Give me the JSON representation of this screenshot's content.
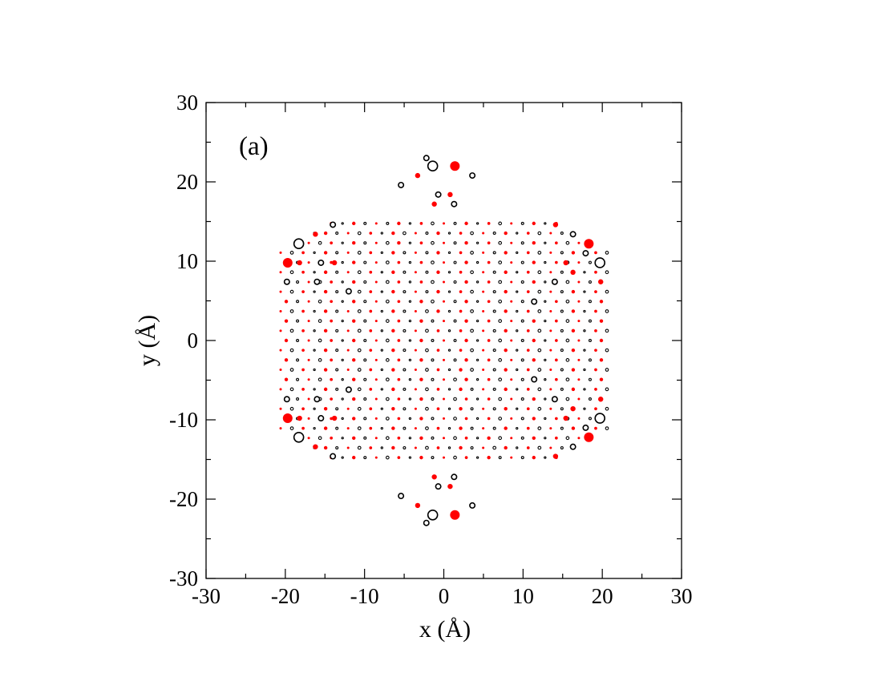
{
  "chart_data": {
    "type": "scatter",
    "panel_label": "(a)",
    "xlabel": "x (Å)",
    "ylabel": "y (Å)",
    "xlim": [
      -30,
      30
    ],
    "ylim": [
      -30,
      30
    ],
    "xticks": [
      -30,
      -20,
      -10,
      0,
      10,
      20,
      30
    ],
    "yticks": [
      -30,
      -20,
      -10,
      0,
      10,
      20,
      30
    ],
    "minor_tick_step": 5,
    "grid": false,
    "lattice": {
      "spacing_x": 1.42,
      "spacing_y": 2.46,
      "hexagon_flat_top_y": 23.3,
      "hexagon_side_x": 21.0,
      "hexagon_corner_y": 11.6
    },
    "series": [
      {
        "marker": "filled",
        "color": "#ff0000",
        "large_points": [
          {
            "x": 1.4,
            "y": 22.0
          },
          {
            "x": 1.4,
            "y": -22.0
          },
          {
            "x": 18.3,
            "y": 12.2
          },
          {
            "x": 18.3,
            "y": -12.2
          },
          {
            "x": -19.7,
            "y": 9.8
          },
          {
            "x": -19.7,
            "y": -9.8
          }
        ],
        "medium_points": [
          {
            "x": 0.8,
            "y": 18.4
          },
          {
            "x": 0.8,
            "y": -18.4
          },
          {
            "x": -3.3,
            "y": 20.8
          },
          {
            "x": -3.3,
            "y": -20.8
          },
          {
            "x": 15.4,
            "y": 9.8
          },
          {
            "x": 15.4,
            "y": -9.8
          },
          {
            "x": 16.3,
            "y": 8.6
          },
          {
            "x": 16.3,
            "y": -8.6
          },
          {
            "x": -16.2,
            "y": 13.4
          },
          {
            "x": -16.2,
            "y": -13.4
          },
          {
            "x": -13.8,
            "y": 9.8
          },
          {
            "x": -13.8,
            "y": -9.8
          },
          {
            "x": -18.2,
            "y": 9.8
          },
          {
            "x": -18.2,
            "y": -9.8
          },
          {
            "x": 19.8,
            "y": 7.4
          },
          {
            "x": 19.8,
            "y": -7.4
          },
          {
            "x": -1.2,
            "y": 17.2
          },
          {
            "x": -1.2,
            "y": -17.2
          },
          {
            "x": 14.1,
            "y": 14.6
          },
          {
            "x": 14.1,
            "y": -14.6
          }
        ]
      },
      {
        "marker": "open",
        "color": "#000000",
        "large_points": [
          {
            "x": -1.4,
            "y": 22.0
          },
          {
            "x": -1.4,
            "y": -22.0
          },
          {
            "x": -18.3,
            "y": 12.2
          },
          {
            "x": -18.3,
            "y": -12.2
          },
          {
            "x": 19.7,
            "y": 9.8
          },
          {
            "x": 19.7,
            "y": -9.8
          }
        ],
        "medium_points": [
          {
            "x": -0.7,
            "y": 18.4
          },
          {
            "x": -0.7,
            "y": -18.4
          },
          {
            "x": 3.6,
            "y": 20.8
          },
          {
            "x": 3.6,
            "y": -20.8
          },
          {
            "x": -15.5,
            "y": 9.8
          },
          {
            "x": -15.5,
            "y": -9.8
          },
          {
            "x": -16.0,
            "y": 7.4
          },
          {
            "x": -16.0,
            "y": -7.4
          },
          {
            "x": 17.9,
            "y": 11.0
          },
          {
            "x": 17.9,
            "y": -11.0
          },
          {
            "x": 16.3,
            "y": 13.4
          },
          {
            "x": 16.3,
            "y": -13.4
          },
          {
            "x": 14.0,
            "y": 7.4
          },
          {
            "x": 14.0,
            "y": -7.4
          },
          {
            "x": -19.8,
            "y": 7.4
          },
          {
            "x": -19.8,
            "y": -7.4
          },
          {
            "x": 1.3,
            "y": 17.2
          },
          {
            "x": 1.3,
            "y": -17.2
          },
          {
            "x": -5.4,
            "y": 19.6
          },
          {
            "x": -5.4,
            "y": -19.6
          },
          {
            "x": -14.0,
            "y": 14.6
          },
          {
            "x": -14.0,
            "y": -14.6
          },
          {
            "x": -12.0,
            "y": 6.2
          },
          {
            "x": -12.0,
            "y": -6.2
          },
          {
            "x": 11.4,
            "y": 4.9
          },
          {
            "x": 11.4,
            "y": -4.9
          },
          {
            "x": -2.2,
            "y": 23.0
          },
          {
            "x": -2.2,
            "y": -23.0
          }
        ]
      }
    ]
  }
}
